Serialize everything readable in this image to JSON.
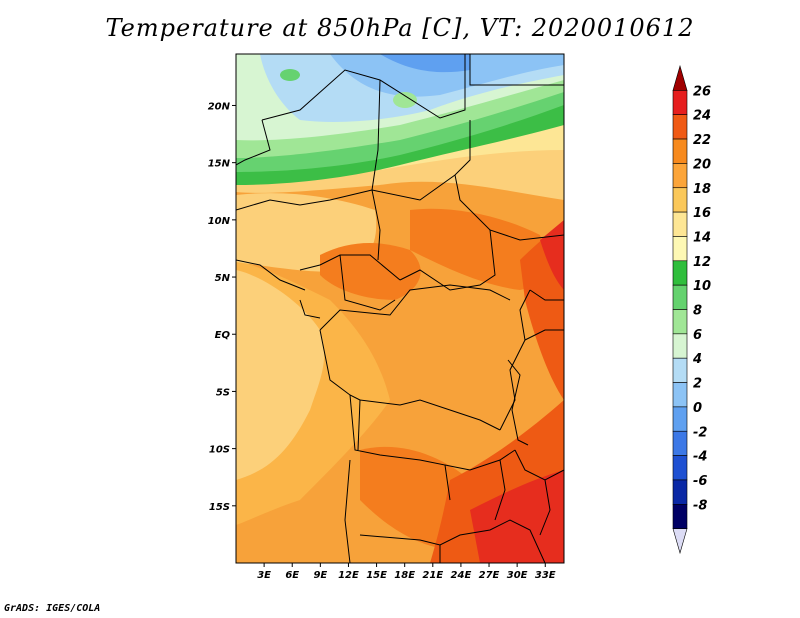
{
  "title": "Temperature at 850hPa [C], VT: 2020010612",
  "credit": "GrADS: IGES/COLA",
  "map": {
    "lat_labels": [
      "20N",
      "15N",
      "10N",
      "5N",
      "EQ",
      "5S",
      "10S",
      "15S"
    ],
    "lat_values": [
      20,
      15,
      10,
      5,
      0,
      -5,
      -10,
      -15
    ],
    "lon_labels": [
      "3E",
      "6E",
      "9E",
      "12E",
      "15E",
      "18E",
      "21E",
      "24E",
      "27E",
      "30E",
      "33E"
    ],
    "lon_values": [
      3,
      6,
      9,
      12,
      15,
      18,
      21,
      24,
      27,
      30,
      33
    ],
    "lon_range": [
      0,
      35
    ],
    "lat_range": [
      -20,
      24.5
    ]
  },
  "colorbar": {
    "labels": [
      "26",
      "24",
      "22",
      "20",
      "18",
      "16",
      "14",
      "12",
      "10",
      "8",
      "6",
      "4",
      "2",
      "0",
      "-2",
      "-4",
      "-6",
      "-8"
    ],
    "colors": [
      "#a00000",
      "#e61e1e",
      "#f05a14",
      "#f78a1e",
      "#fca53a",
      "#fbc85a",
      "#fde695",
      "#fdf8b4",
      "#2fbe3c",
      "#64d26e",
      "#a0e696",
      "#d7f5d2",
      "#b4dcf5",
      "#8cc3f5",
      "#5fa0f0",
      "#3c78e6",
      "#1e50d2",
      "#0a28a5",
      "#000064",
      "#dcdcf5"
    ]
  }
}
